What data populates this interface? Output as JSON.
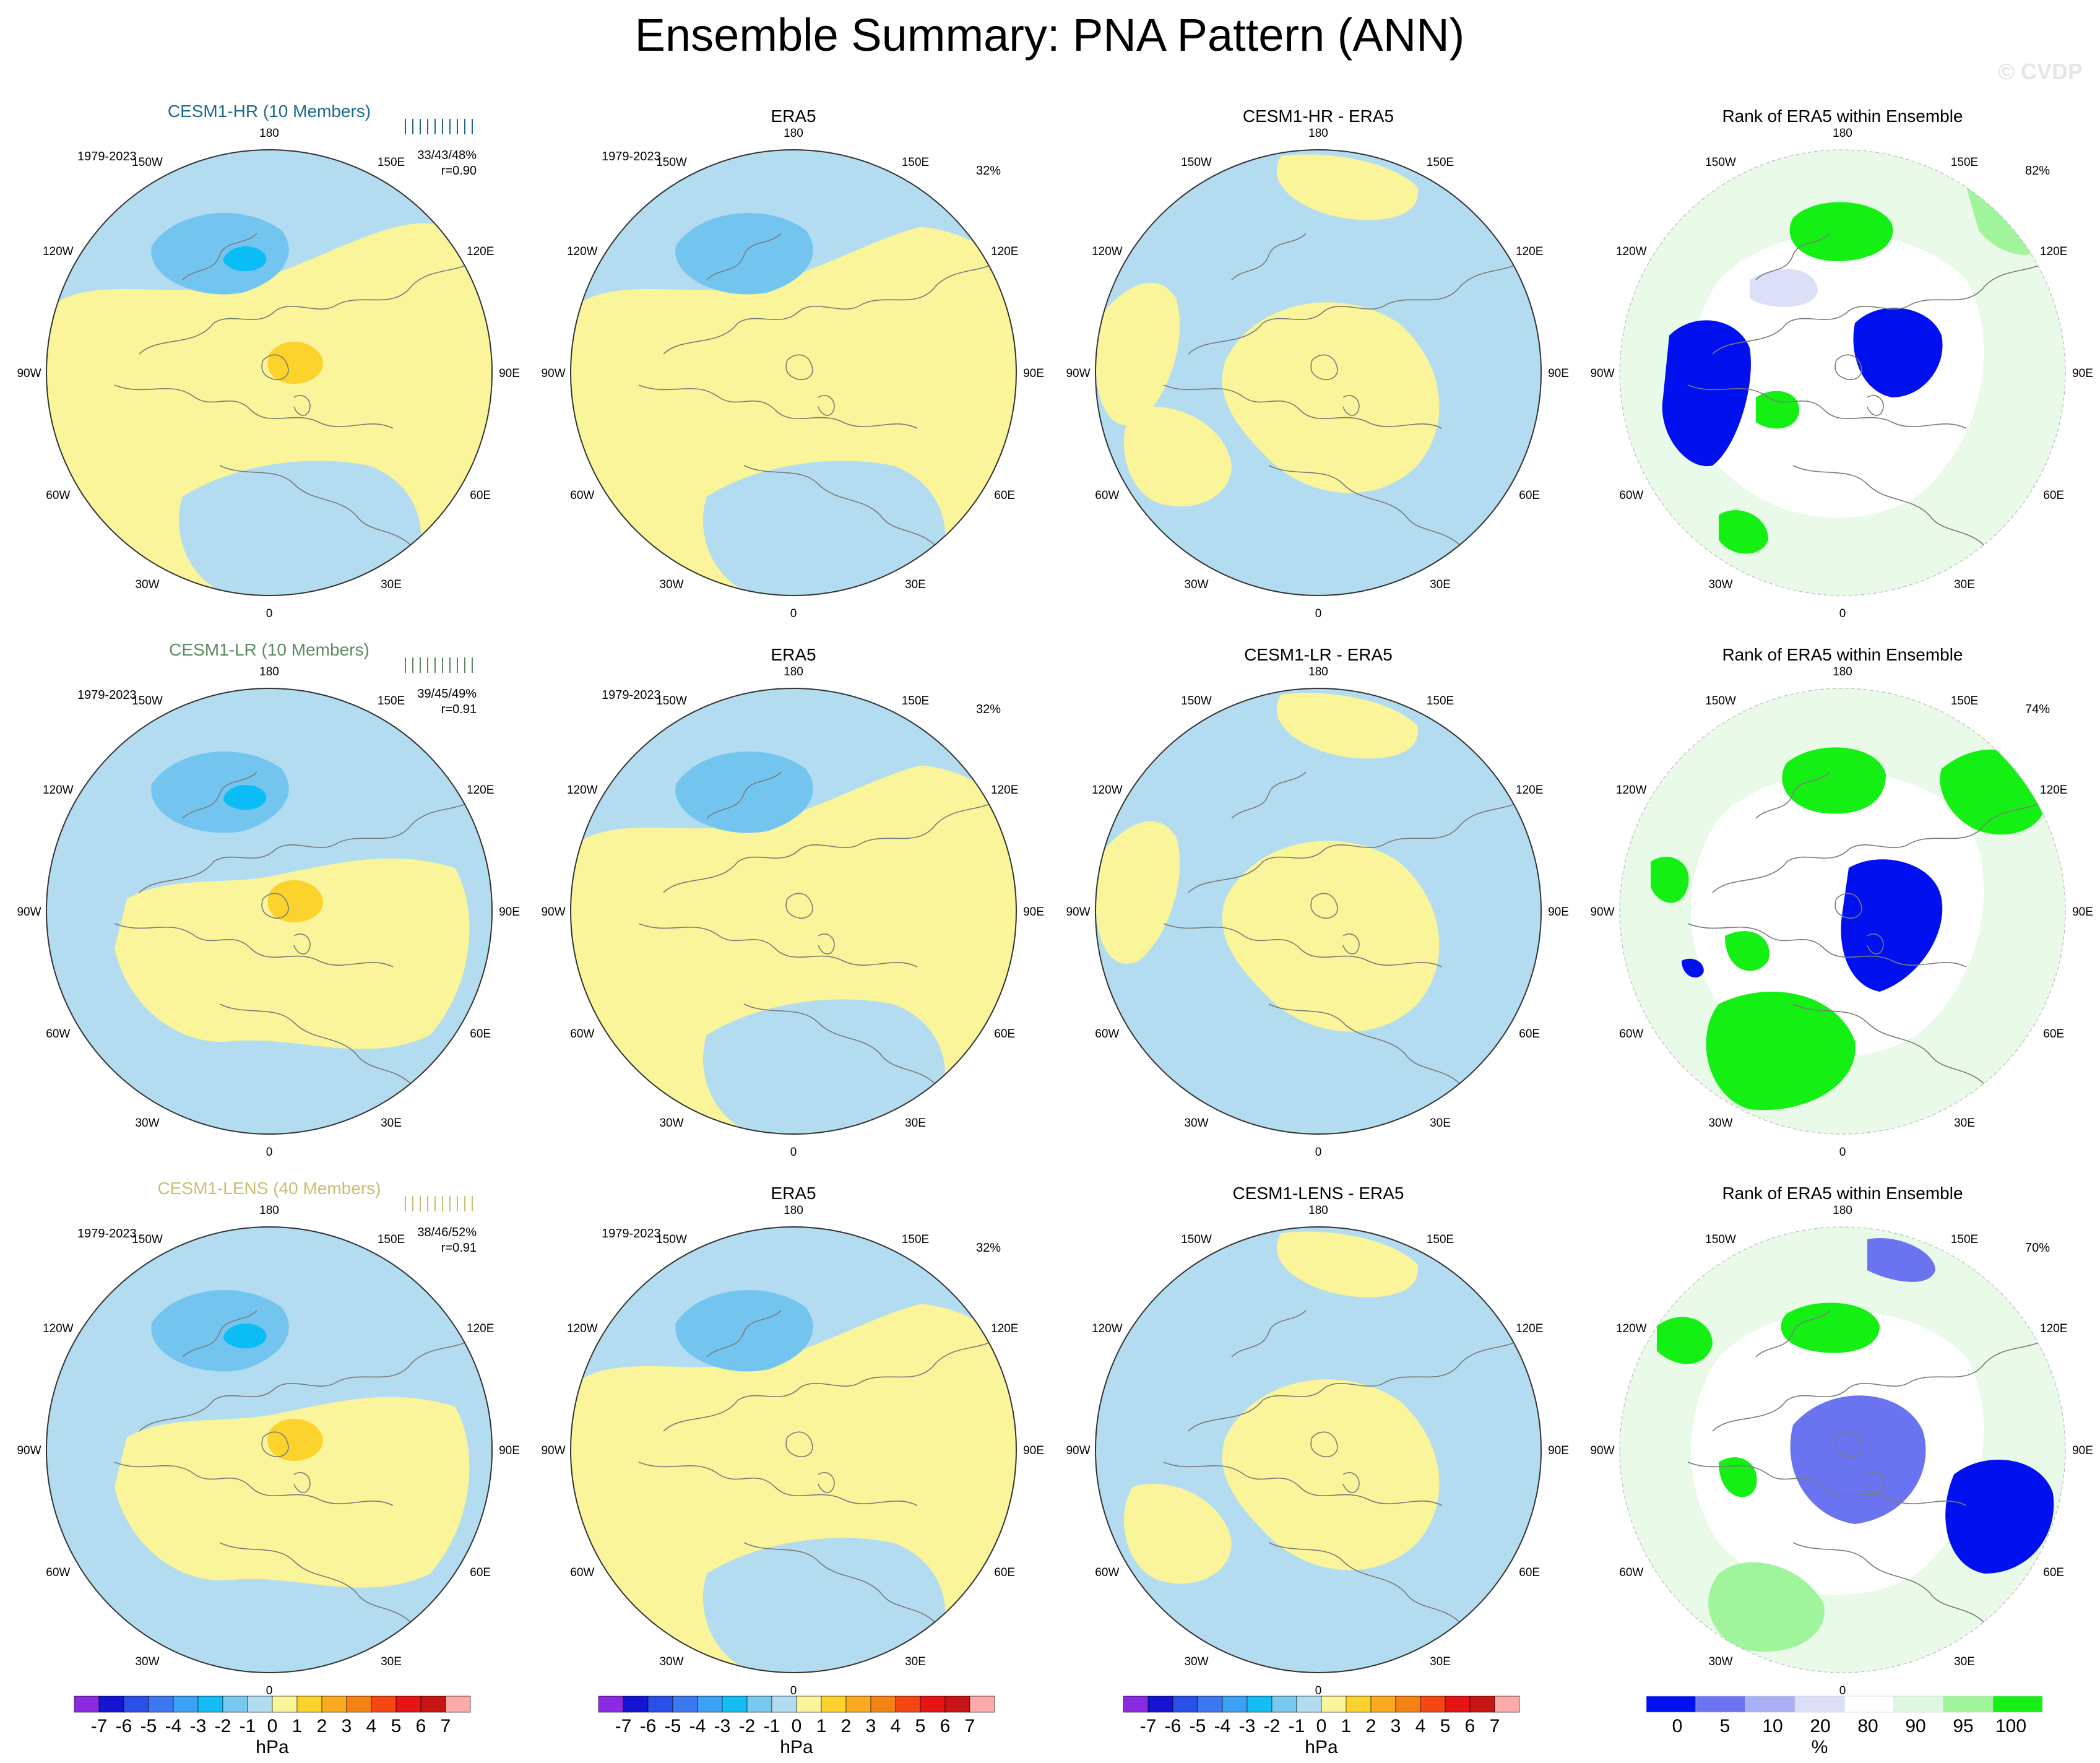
{
  "title": "Ensemble Summary: PNA Pattern (ANN)",
  "watermark": "© CVDP",
  "colors": {
    "light_blue": "#b3dcf0",
    "mid_blue": "#73c5f0",
    "deep_blue": "#0cbcf5",
    "light_yellow": "#faf59a",
    "orange_yellow": "#fcd22c",
    "coast": "#7a7a7a",
    "rank_deep_blue": "#0010ee",
    "rank_mid_blue": "#6a74f0",
    "rank_light_lav": "#dcdff8",
    "rank_light_green": "#dff8df",
    "rank_mid_green": "#9ff49c",
    "rank_green": "#14f014",
    "hr_title": "#1a6a8e",
    "lr_title": "#5a8a62",
    "lens_title": "#c9bf73"
  },
  "longitude_labels": [
    "180",
    "150E",
    "120E",
    "90E",
    "60E",
    "30E",
    "0",
    "30W",
    "60W",
    "90W",
    "120W",
    "150W"
  ],
  "rows": [
    {
      "model": {
        "title": "CESM1-HR (10 Members)",
        "period": "1979-2023",
        "stats": "33/43/48%",
        "corr": "r=0.90",
        "title_color": "#1a6a8e"
      },
      "obs": {
        "title": "ERA5",
        "period": "1979-2023",
        "pct": "32%"
      },
      "diff": {
        "title": "CESM1-HR - ERA5"
      },
      "rank": {
        "title": "Rank of ERA5 within Ensemble",
        "pct": "82%"
      }
    },
    {
      "model": {
        "title": "CESM1-LR (10 Members)",
        "period": "1979-2023",
        "stats": "39/45/49%",
        "corr": "r=0.91",
        "title_color": "#5a8a62"
      },
      "obs": {
        "title": "ERA5",
        "period": "1979-2023",
        "pct": "32%"
      },
      "diff": {
        "title": "CESM1-LR - ERA5"
      },
      "rank": {
        "title": "Rank of ERA5 within Ensemble",
        "pct": "74%"
      }
    },
    {
      "model": {
        "title": "CESM1-LENS (40 Members)",
        "period": "1979-2023",
        "stats": "38/46/52%",
        "corr": "r=0.91",
        "title_color": "#c9bf73"
      },
      "obs": {
        "title": "ERA5",
        "period": "1979-2023",
        "pct": "32%"
      },
      "diff": {
        "title": "CESM1-LENS - ERA5"
      },
      "rank": {
        "title": "Rank of ERA5 within Ensemble",
        "pct": "70%"
      }
    }
  ],
  "hpa_colorbar": {
    "labels": [
      "-7",
      "-6",
      "-5",
      "-4",
      "-3",
      "-2",
      "-1",
      "0",
      "1",
      "2",
      "3",
      "4",
      "5",
      "6",
      "7"
    ],
    "colors": [
      "#8a2be2",
      "#1414d2",
      "#2850e6",
      "#3c78f0",
      "#3ca0f5",
      "#14bef5",
      "#78c8f0",
      "#b4dcf0",
      "#faf59b",
      "#fcd22c",
      "#faaa1e",
      "#f58214",
      "#f54614",
      "#e61414",
      "#c81414",
      "#ffaaaa"
    ],
    "unit": "hPa"
  },
  "rank_colorbar": {
    "labels": [
      "0",
      "5",
      "10",
      "20",
      "80",
      "90",
      "95",
      "100"
    ],
    "colors": [
      "#0010ee",
      "#6a74f0",
      "#aab0f4",
      "#dcdff8",
      "#ffffff",
      "#dff8df",
      "#9ff49c",
      "#14f014"
    ],
    "unit": "%"
  },
  "chart_data": {
    "type": "heatmap",
    "title": "Ensemble Summary: PNA Pattern (ANN)",
    "projection": "north polar stereographic",
    "variable": "PNA pattern sea level pressure regression",
    "units": "hPa",
    "colorbar_levels_hPa": [
      -7,
      -6,
      -5,
      -4,
      -3,
      -2,
      -1,
      0,
      1,
      2,
      3,
      4,
      5,
      6,
      7
    ],
    "rank_levels_percent": [
      0,
      5,
      10,
      20,
      80,
      90,
      95,
      100
    ],
    "panels": [
      {
        "row": 1,
        "col": 1,
        "title": "CESM1-HR (10 Members)",
        "period": "1979-2023",
        "pct_variance_min_mean_max": [
          33,
          43,
          48
        ],
        "pattern_correlation": 0.9
      },
      {
        "row": 1,
        "col": 2,
        "title": "ERA5",
        "period": "1979-2023",
        "pct_variance": 32
      },
      {
        "row": 1,
        "col": 3,
        "title": "CESM1-HR - ERA5"
      },
      {
        "row": 1,
        "col": 4,
        "title": "Rank of ERA5 within Ensemble",
        "pct_area": 82
      },
      {
        "row": 2,
        "col": 1,
        "title": "CESM1-LR (10 Members)",
        "period": "1979-2023",
        "pct_variance_min_mean_max": [
          39,
          45,
          49
        ],
        "pattern_correlation": 0.91
      },
      {
        "row": 2,
        "col": 2,
        "title": "ERA5",
        "period": "1979-2023",
        "pct_variance": 32
      },
      {
        "row": 2,
        "col": 3,
        "title": "CESM1-LR - ERA5"
      },
      {
        "row": 2,
        "col": 4,
        "title": "Rank of ERA5 within Ensemble",
        "pct_area": 74
      },
      {
        "row": 3,
        "col": 1,
        "title": "CESM1-LENS (40 Members)",
        "period": "1979-2023",
        "pct_variance_min_mean_max": [
          38,
          46,
          52
        ],
        "pattern_correlation": 0.91
      },
      {
        "row": 3,
        "col": 2,
        "title": "ERA5",
        "period": "1979-2023",
        "pct_variance": 32
      },
      {
        "row": 3,
        "col": 3,
        "title": "CESM1-LENS - ERA5"
      },
      {
        "row": 3,
        "col": 4,
        "title": "Rank of ERA5 within Ensemble",
        "pct_area": 70
      }
    ]
  }
}
